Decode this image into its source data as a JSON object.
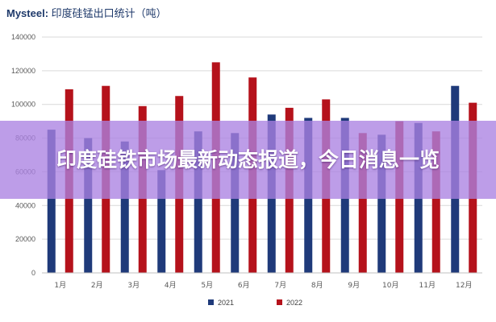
{
  "header": {
    "source_label": "Mysteel:",
    "chart_title": "印度硅锰出口统计（吨）"
  },
  "overlay": {
    "headline": "印度硅铁市场最新动态报道，今日消息一览"
  },
  "colors": {
    "series_2021": "#1f3a7a",
    "series_2022": "#b5121b",
    "gridline": "#d9d9d9",
    "overlay": "#aa82e1"
  },
  "chart_data": {
    "type": "bar",
    "title": "印度硅锰出口统计（吨）",
    "xlabel": "",
    "ylabel": "",
    "categories": [
      "1月",
      "2月",
      "3月",
      "4月",
      "5月",
      "6月",
      "7月",
      "8月",
      "9月",
      "10月",
      "11月",
      "12月"
    ],
    "series": [
      {
        "name": "2021",
        "values": [
          85000,
          80000,
          78000,
          61000,
          84000,
          83000,
          94000,
          92000,
          92000,
          82000,
          89000,
          111000
        ]
      },
      {
        "name": "2022",
        "values": [
          109000,
          111000,
          99000,
          105000,
          125000,
          116000,
          98000,
          103000,
          83000,
          90000,
          84000,
          101000
        ]
      }
    ],
    "ylim": [
      0,
      140000
    ],
    "yticks": [
      0,
      20000,
      40000,
      60000,
      80000,
      100000,
      120000,
      140000
    ],
    "grid": true,
    "legend": "bottom"
  }
}
